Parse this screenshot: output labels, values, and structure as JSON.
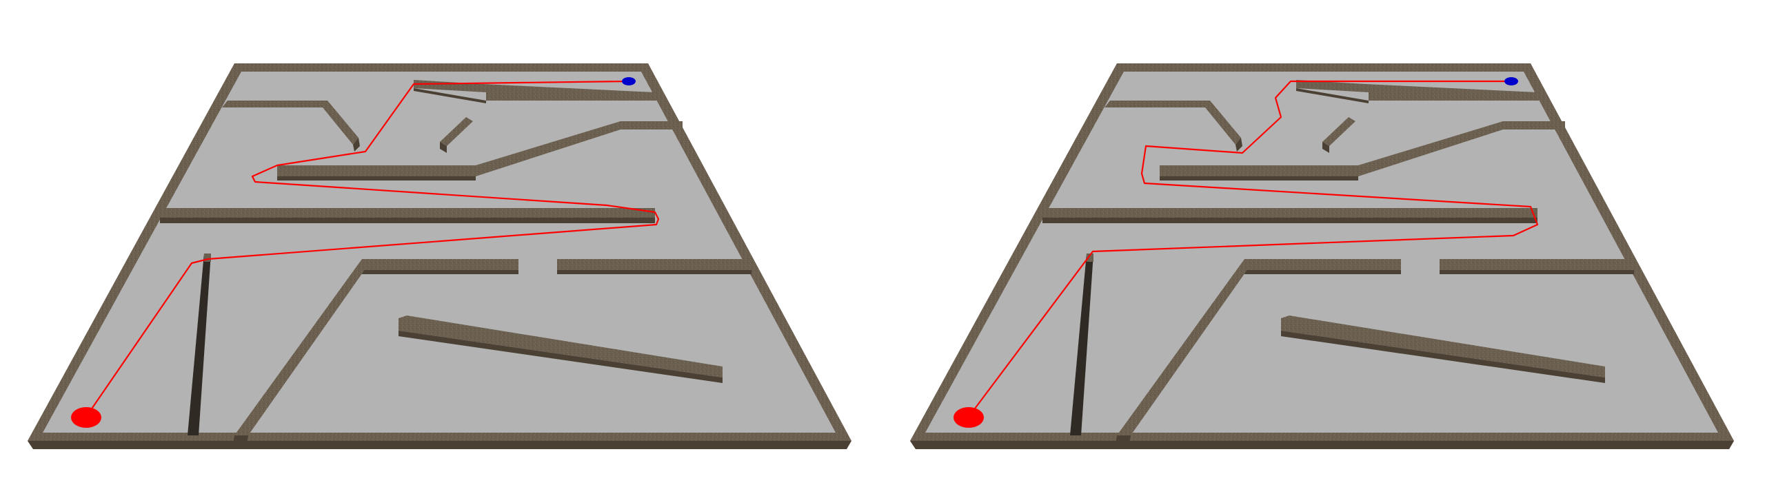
{
  "colors": {
    "background": "#ffffff",
    "floor": "#b3b3b3",
    "wall": "#6b5f50",
    "wall_shadow": "#4a4034",
    "path": "#ff0000",
    "start_marker": "#ff0000",
    "goal_marker": "#0000cc"
  },
  "panels": [
    {
      "name": "left-maze-view",
      "path_variant": "path-a"
    },
    {
      "name": "right-maze-view",
      "path_variant": "path-b"
    }
  ],
  "markers": {
    "start": "red-start-disc",
    "goal": "blue-goal-disc"
  }
}
